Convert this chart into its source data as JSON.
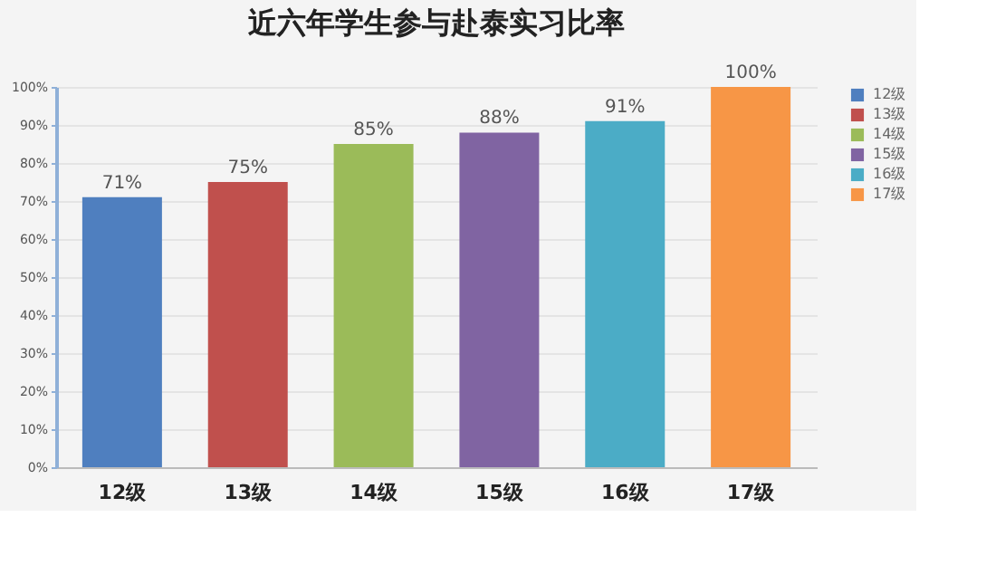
{
  "chart_data": {
    "type": "bar",
    "title": "近六年学生参与赴泰实习比率",
    "categories": [
      "12级",
      "13级",
      "14级",
      "15级",
      "16级",
      "17级"
    ],
    "series": [
      {
        "name": "12级",
        "color": "#4f7fbf",
        "values": [
          71,
          null,
          null,
          null,
          null,
          null
        ],
        "value_labels": [
          "71%",
          null,
          null,
          null,
          null,
          null
        ]
      },
      {
        "name": "13级",
        "color": "#c0504d",
        "values": [
          null,
          75,
          null,
          null,
          null,
          null
        ],
        "value_labels": [
          null,
          "75%",
          null,
          null,
          null,
          null
        ]
      },
      {
        "name": "14级",
        "color": "#9bbb59",
        "values": [
          null,
          null,
          85,
          null,
          null,
          null
        ],
        "value_labels": [
          null,
          null,
          "85%",
          null,
          null,
          null
        ]
      },
      {
        "name": "15级",
        "color": "#8064a2",
        "values": [
          null,
          null,
          null,
          88,
          null,
          null
        ],
        "value_labels": [
          null,
          null,
          null,
          "88%",
          null,
          null
        ]
      },
      {
        "name": "16级",
        "color": "#4bacc6",
        "values": [
          null,
          null,
          null,
          null,
          91,
          null
        ],
        "value_labels": [
          null,
          null,
          null,
          null,
          "91%",
          null
        ]
      },
      {
        "name": "17级",
        "color": "#f79646",
        "values": [
          null,
          null,
          null,
          null,
          null,
          100
        ],
        "value_labels": [
          null,
          null,
          null,
          null,
          null,
          "100%"
        ]
      }
    ],
    "ylim": [
      0,
      100
    ],
    "yticks": [
      {
        "value": 0,
        "label": "0%"
      },
      {
        "value": 10,
        "label": "10%"
      },
      {
        "value": 20,
        "label": "20%"
      },
      {
        "value": 30,
        "label": "30%"
      },
      {
        "value": 40,
        "label": "40%"
      },
      {
        "value": 50,
        "label": "50%"
      },
      {
        "value": 60,
        "label": "60%"
      },
      {
        "value": 70,
        "label": "70%"
      },
      {
        "value": 80,
        "label": "80%"
      },
      {
        "value": 90,
        "label": "90%"
      },
      {
        "value": 100,
        "label": "100%"
      }
    ],
    "grid": "y",
    "legend": "right"
  }
}
